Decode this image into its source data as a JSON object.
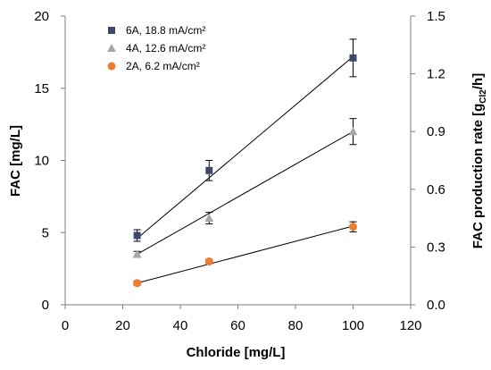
{
  "chart_data": {
    "type": "scatter",
    "title": "",
    "xlabel": "Chloride [mg/L]",
    "ylabel_left": "FAC [mg/L]",
    "ylabel_right_main": "FAC production rate [g",
    "ylabel_right_sub": "Cl2",
    "ylabel_right_end": "/h]",
    "xlim": [
      0,
      120
    ],
    "xticks": [
      0,
      20,
      40,
      60,
      80,
      100,
      120
    ],
    "ylim_left": [
      0,
      20
    ],
    "yticks_left": [
      0,
      5,
      10,
      15,
      20
    ],
    "ylim_right": [
      0,
      1.5
    ],
    "yticks_right": [
      "0.0",
      "0.3",
      "0.6",
      "0.9",
      "1.2",
      "1.5"
    ],
    "grid": false,
    "legend_position": "top-left",
    "x": [
      25,
      50,
      100
    ],
    "series": [
      {
        "name": "6A, 18.8 mA/cm²",
        "marker": "square",
        "color": "#3b4a6b",
        "values": [
          4.8,
          9.3,
          17.1
        ],
        "errors": [
          0.4,
          0.7,
          1.3
        ],
        "fit": [
          [
            25,
            4.6
          ],
          [
            100,
            17.2
          ]
        ]
      },
      {
        "name": "4A, 12.6 mA/cm²",
        "marker": "triangle",
        "color": "#a6a6a6",
        "values": [
          3.5,
          6.0,
          12.0
        ],
        "errors": [
          0.2,
          0.4,
          0.9
        ],
        "fit": [
          [
            25,
            3.5
          ],
          [
            100,
            12.0
          ]
        ]
      },
      {
        "name": "2A,   6.2 mA/cm²",
        "marker": "circle",
        "color": "#ed7d31",
        "values": [
          1.5,
          3.0,
          5.4
        ],
        "errors": [
          0.15,
          0.15,
          0.35
        ],
        "fit": [
          [
            25,
            1.5
          ],
          [
            100,
            5.45
          ]
        ]
      }
    ]
  }
}
